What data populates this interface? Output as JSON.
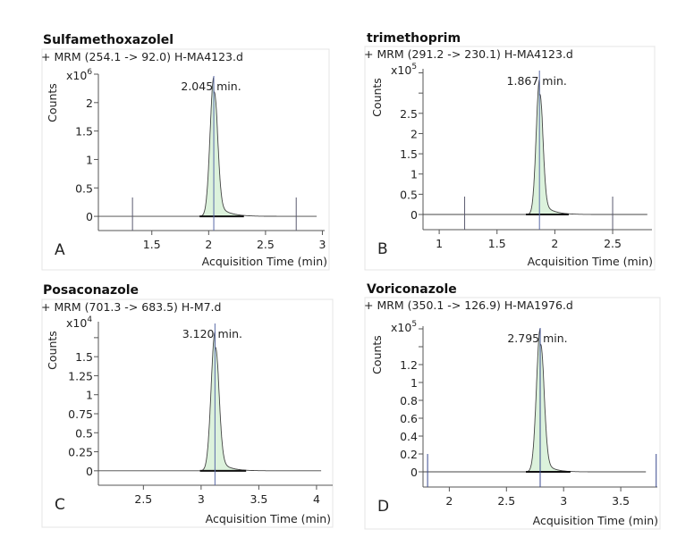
{
  "chart_data": [
    {
      "type": "line",
      "panel_letter": "A",
      "title": "Sulfamethoxazolel",
      "subtitle": "+ MRM (254.1 -> 92.0) H-MA4123.d",
      "ylabel": "Counts",
      "y_multiplier": {
        "base": "x10",
        "exp": "6"
      },
      "xlabel": "Acquisition Time (min)",
      "xlim": [
        1.03,
        3.02
      ],
      "ylim": [
        -0.25,
        2.5
      ],
      "xticks": [
        1.5,
        2,
        2.5,
        3
      ],
      "xtick_labels": [
        "1.5",
        "2",
        "2.5",
        "3"
      ],
      "yticks": [
        0,
        0.5,
        1,
        1.5,
        2,
        2.5
      ],
      "ytick_labels": [
        "0",
        "0.5",
        "1",
        "1.5",
        "2",
        ""
      ],
      "peak": {
        "rt": 2.045,
        "rt_label": "2.045 min.",
        "apex": 2.45,
        "integration": [
          1.92,
          2.31
        ]
      },
      "trace_range": [
        1.03,
        2.95
      ],
      "markers": [
        1.33,
        2.77
      ],
      "colors": {
        "fill": "#dcf2dc",
        "rt_line": "#5a6aa8",
        "marker": "#5a5a70"
      }
    },
    {
      "type": "line",
      "panel_letter": "B",
      "title": "trimethoprim",
      "subtitle": "+ MRM (291.2 -> 230.1) H-MA4123.d",
      "ylabel": "Counts",
      "y_multiplier": {
        "base": "x10",
        "exp": "5"
      },
      "xlabel": "Acquisition Time (min)",
      "xlim": [
        0.86,
        2.84
      ],
      "ylim": [
        -0.375,
        3.6
      ],
      "xticks": [
        1,
        1.5,
        2,
        2.5
      ],
      "xtick_labels": [
        "1",
        "1.5",
        "2",
        "2.5"
      ],
      "yticks": [
        0,
        0.5,
        1,
        1.5,
        2,
        2.5,
        3,
        3.5
      ],
      "ytick_labels": [
        "0",
        "0.5",
        "1",
        "1.5",
        "2",
        "2.5",
        "",
        ""
      ],
      "peak": {
        "rt": 1.867,
        "rt_label": "1.867 min.",
        "apex": 3.33,
        "integration": [
          1.75,
          2.12
        ]
      },
      "trace_range": [
        0.86,
        2.8
      ],
      "markers": [
        1.22,
        2.5
      ],
      "colors": {
        "fill": "#dcf2dc",
        "rt_line": "#5a6aa8",
        "marker": "#5a5a70"
      }
    },
    {
      "type": "line",
      "panel_letter": "C",
      "title": "Posaconazole",
      "subtitle": "+ MRM (701.3 -> 683.5) H-M7.d",
      "ylabel": "Counts",
      "y_multiplier": {
        "base": "x10",
        "exp": "4"
      },
      "xlabel": "Acquisition Time (min)",
      "xlim": [
        2.11,
        4.14
      ],
      "ylim": [
        -0.19,
        1.96
      ],
      "xticks": [
        2.5,
        3,
        3.5,
        4
      ],
      "xtick_labels": [
        "2.5",
        "3",
        "3.5",
        "4"
      ],
      "yticks": [
        0,
        0.25,
        0.5,
        0.75,
        1,
        1.25,
        1.5,
        1.75
      ],
      "ytick_labels": [
        "0",
        "0.25",
        "0.5",
        "0.75",
        "1",
        "1.25",
        "1.5",
        ""
      ],
      "peak": {
        "rt": 3.12,
        "rt_label": "3.120 min.",
        "apex": 1.82,
        "integration": [
          2.99,
          3.39
        ]
      },
      "trace_range": [
        2.11,
        4.04
      ],
      "markers": [],
      "colors": {
        "fill": "#dcf2dc",
        "rt_line": "#5a6aa8",
        "marker": "#5a5a70"
      }
    },
    {
      "type": "line",
      "panel_letter": "D",
      "title": "Voriconazole",
      "subtitle": "+ MRM (350.1 -> 126.9) H-MA1976.d",
      "ylabel": "Counts",
      "y_multiplier": {
        "base": "x10",
        "exp": "5"
      },
      "xlabel": "Acquisition Time (min)",
      "xlim": [
        1.77,
        3.82
      ],
      "ylim": [
        -0.17,
        1.63
      ],
      "xticks": [
        2,
        2.5,
        3,
        3.5
      ],
      "xtick_labels": [
        "2",
        "2.5",
        "3",
        "3.5"
      ],
      "yticks": [
        0,
        0.2,
        0.4,
        0.6,
        0.8,
        1,
        1.2,
        1.4,
        1.6
      ],
      "ytick_labels": [
        "0",
        "0.2",
        "0.4",
        "0.6",
        "0.8",
        "1",
        "1.2",
        "",
        ""
      ],
      "peak": {
        "rt": 2.795,
        "rt_label": "2.795 min.",
        "apex": 1.6,
        "integration": [
          2.67,
          3.06
        ]
      },
      "trace_range": [
        1.77,
        3.72
      ],
      "markers": [
        1.81,
        3.81
      ],
      "colors": {
        "fill": "#dcf2dc",
        "rt_line": "#3a4a90",
        "marker": "#3a4a90"
      }
    }
  ]
}
